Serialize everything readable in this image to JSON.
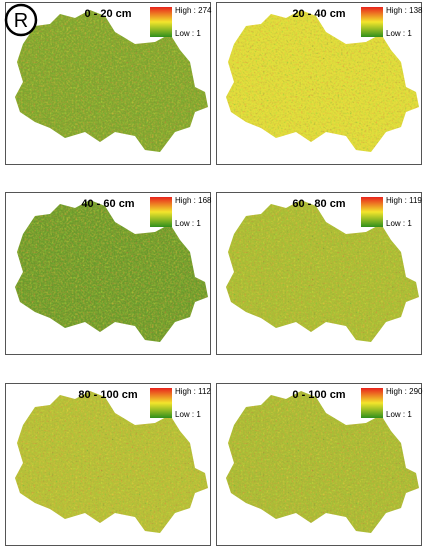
{
  "badge": "R",
  "panels": [
    {
      "title": "0 - 20 cm",
      "high_label": "High : 274",
      "low_label": "Low : 1",
      "color": "#7da52f"
    },
    {
      "title": "20 - 40 cm",
      "high_label": "High : 138",
      "low_label": "Low : 1",
      "color": "#e2df3c"
    },
    {
      "title": "40 - 60 cm",
      "high_label": "High : 168",
      "low_label": "Low : 1",
      "color": "#6a9a2c"
    },
    {
      "title": "60 - 80 cm",
      "high_label": "High : 119",
      "low_label": "Low : 1",
      "color": "#a9bd35"
    },
    {
      "title": "80 - 100 cm",
      "high_label": "High : 112",
      "low_label": "Low : 1",
      "color": "#b5c038"
    },
    {
      "title": "0 - 100 cm",
      "high_label": "High : 290",
      "low_label": "Low : 1",
      "color": "#a9bb36"
    }
  ]
}
